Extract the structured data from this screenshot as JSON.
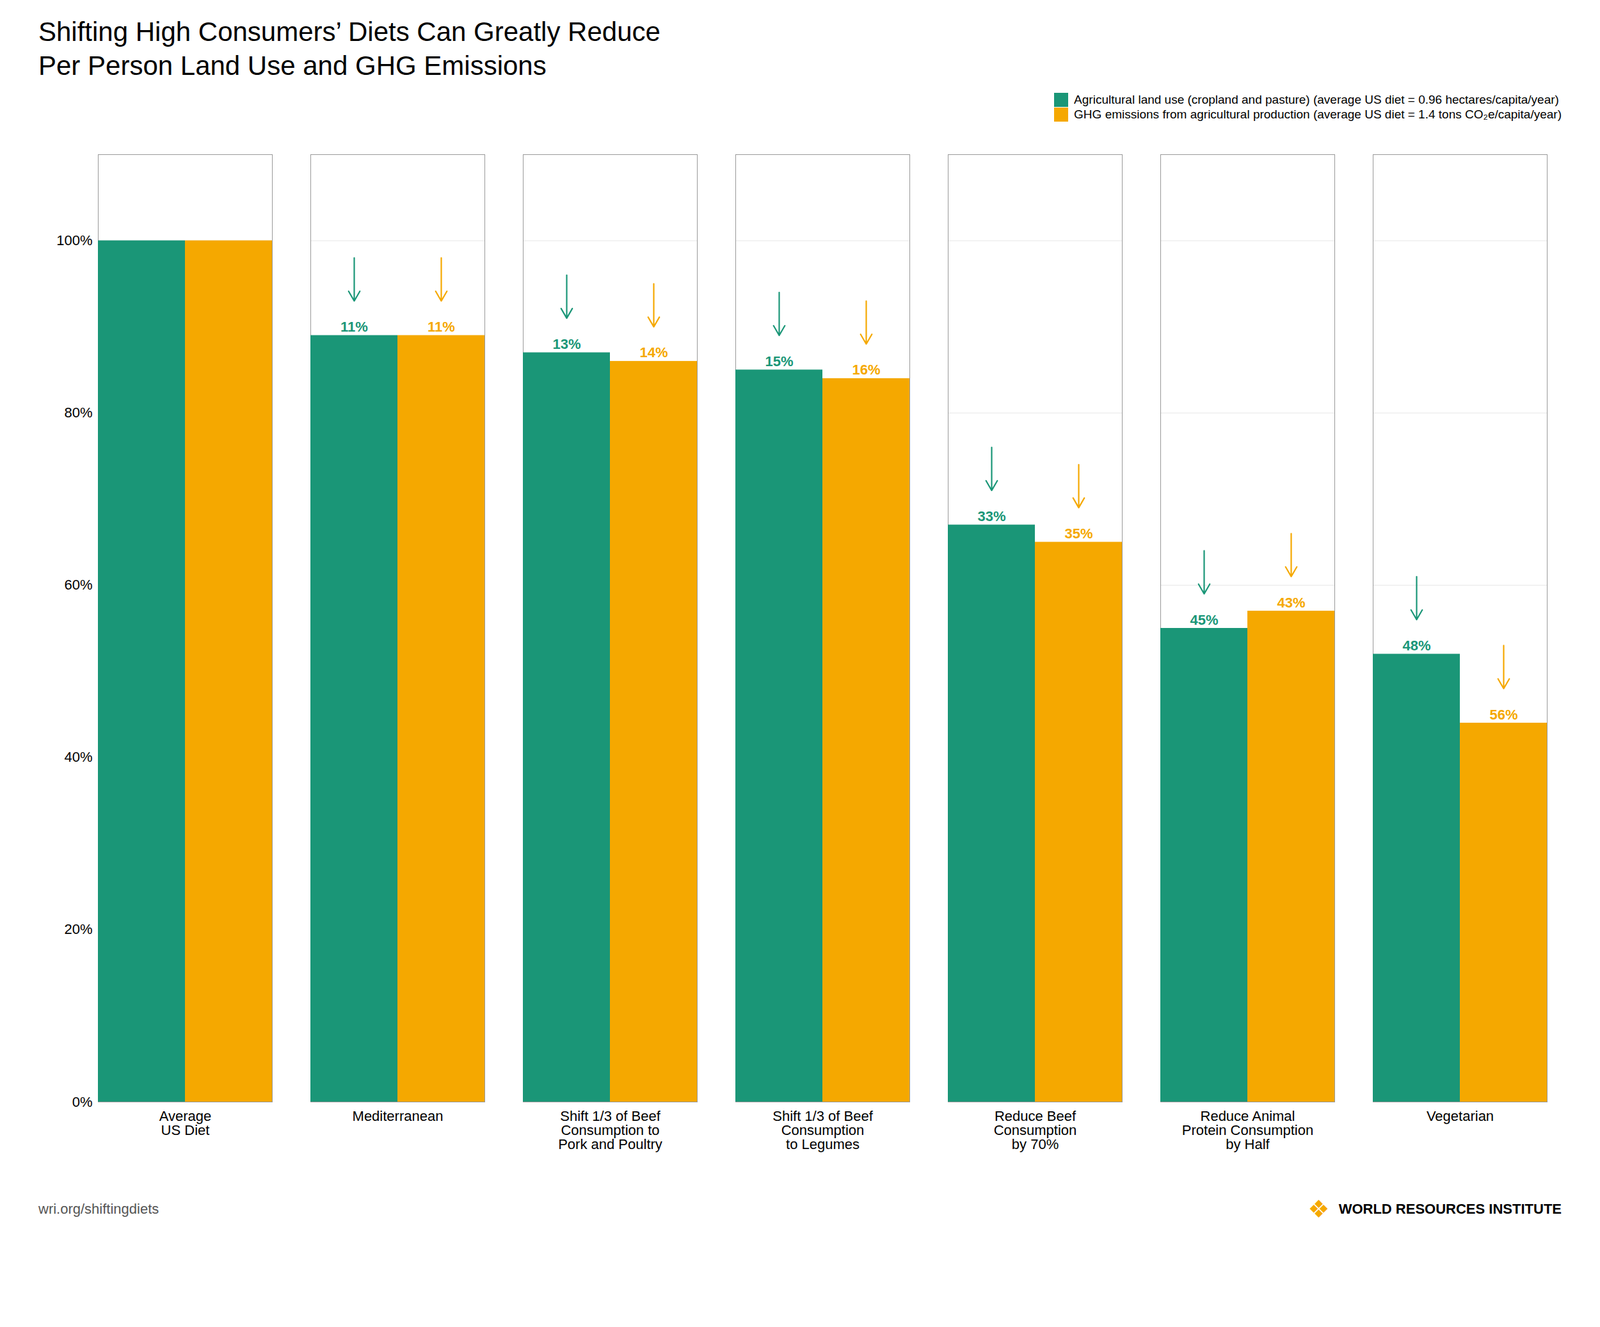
{
  "chart_data": {
    "type": "bar",
    "title": "Shifting High Consumers’ Diets Can Greatly Reduce",
    "subtitle": "Per Person Land Use and GHG Emissions",
    "categories": [
      "Average\nUS Diet",
      "Mediterranean",
      "Shift 1/3 of Beef\nConsumption to\nPork and Poultry",
      "Shift 1/3 of Beef\nConsumption\nto Legumes",
      "Reduce Beef\nConsumption\nby 70%",
      "Reduce Animal\nProtein Consumption\nby Half",
      "Vegetarian"
    ],
    "series": [
      {
        "name": "Agricultural land use (cropland and pasture) (average US diet = 0.96 hectares/capita/year)",
        "color": "#1a9677",
        "values": [
          100,
          89,
          87,
          85,
          67,
          55,
          52
        ],
        "reduction_labels": [
          null,
          "11%",
          "13%",
          "15%",
          "33%",
          "45%",
          "48%"
        ]
      },
      {
        "name": "GHG emissions from agricultural production (average US diet = 1.4 tons CO₂e/capita/year)",
        "color": "#f5a800",
        "values": [
          100,
          89,
          86,
          84,
          65,
          57,
          44
        ],
        "reduction_labels": [
          null,
          "11%",
          "14%",
          "16%",
          "35%",
          "43%",
          "56%"
        ]
      }
    ],
    "ylim": [
      0,
      110
    ],
    "yticks": [
      {
        "value": 0,
        "label": "0%"
      },
      {
        "value": 20,
        "label": "20%"
      },
      {
        "value": 40,
        "label": "40%"
      },
      {
        "value": 60,
        "label": "60%"
      },
      {
        "value": 80,
        "label": "80%"
      },
      {
        "value": 100,
        "label": "100%"
      }
    ],
    "grid": true,
    "legend": "upper right",
    "annotations": [
      "wri.org/shiftingdiets",
      "❖",
      "WORLD RESOURCES INSTITUTE"
    ]
  }
}
